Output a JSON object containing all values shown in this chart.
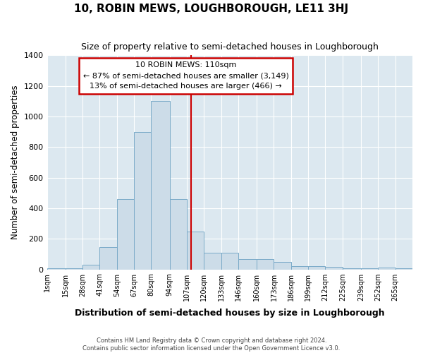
{
  "title": "10, ROBIN MEWS, LOUGHBOROUGH, LE11 3HJ",
  "subtitle": "Size of property relative to semi-detached houses in Loughborough",
  "xlabel": "Distribution of semi-detached houses by size in Loughborough",
  "ylabel": "Number of semi-detached properties",
  "bar_color": "#ccdce8",
  "bar_edge_color": "#7aaac8",
  "vline_color": "#cc0000",
  "property_sqm": 110,
  "pct_smaller": 87,
  "count_smaller": 3149,
  "pct_larger": 13,
  "count_larger": 466,
  "bin_edges": [
    1,
    15,
    28,
    41,
    54,
    67,
    80,
    94,
    107,
    120,
    133,
    146,
    160,
    173,
    186,
    199,
    212,
    225,
    239,
    252,
    265,
    278
  ],
  "counts": [
    5,
    5,
    30,
    145,
    460,
    900,
    1100,
    460,
    245,
    110,
    110,
    65,
    65,
    50,
    20,
    20,
    15,
    5,
    5,
    10,
    5
  ],
  "ylim": [
    0,
    1400
  ],
  "yticks": [
    0,
    200,
    400,
    600,
    800,
    1000,
    1200,
    1400
  ],
  "xtick_positions": [
    1,
    15,
    28,
    41,
    54,
    67,
    80,
    94,
    107,
    120,
    133,
    146,
    160,
    173,
    186,
    199,
    212,
    225,
    239,
    252,
    265
  ],
  "xtick_labels": [
    "1sqm",
    "15sqm",
    "28sqm",
    "41sqm",
    "54sqm",
    "67sqm",
    "80sqm",
    "94sqm",
    "107sqm",
    "120sqm",
    "133sqm",
    "146sqm",
    "160sqm",
    "173sqm",
    "186sqm",
    "199sqm",
    "212sqm",
    "225sqm",
    "239sqm",
    "252sqm",
    "265sqm"
  ],
  "figure_bg": "#ffffff",
  "axes_bg": "#dce8f0",
  "grid_color": "#ffffff",
  "annot_box_color": "#cc0000",
  "footer1": "Contains HM Land Registry data © Crown copyright and database right 2024.",
  "footer2": "Contains public sector information licensed under the Open Government Licence v3.0."
}
